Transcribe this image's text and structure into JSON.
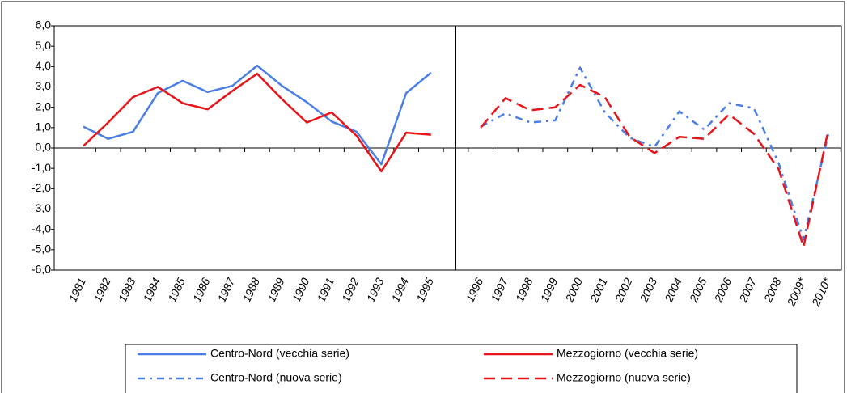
{
  "chart_data": {
    "type": "line",
    "categories": [
      "1981",
      "1982",
      "1983",
      "1984",
      "1985",
      "1986",
      "1987",
      "1988",
      "1989",
      "1990",
      "1991",
      "1992",
      "1993",
      "1994",
      "1995",
      null,
      "1996",
      "1997",
      "1998",
      "1999",
      "2000",
      "2001",
      "2002",
      "2003",
      "2004",
      "2005",
      "2006",
      "2007",
      "2008",
      "2009*",
      "2010*"
    ],
    "series": [
      {
        "name": "Centro-Nord (vecchia serie)",
        "color": "#4a7ee6",
        "dash": "solid",
        "values": [
          1.05,
          0.45,
          0.8,
          2.7,
          3.3,
          2.75,
          3.05,
          4.05,
          3.05,
          2.25,
          1.3,
          0.8,
          -0.8,
          2.7,
          3.7,
          null,
          null,
          null,
          null,
          null,
          null,
          null,
          null,
          null,
          null,
          null,
          null,
          null,
          null,
          null,
          null
        ]
      },
      {
        "name": "Mezzogiorno (vecchia serie)",
        "color": "#e8141a",
        "dash": "solid",
        "values": [
          0.1,
          1.25,
          2.5,
          3.0,
          2.2,
          1.9,
          2.8,
          3.65,
          2.4,
          1.25,
          1.75,
          0.6,
          -1.15,
          0.75,
          0.65,
          null,
          null,
          null,
          null,
          null,
          null,
          null,
          null,
          null,
          null,
          null,
          null,
          null,
          null,
          null,
          null
        ]
      },
      {
        "name": "Centro-Nord (nuova serie)",
        "color": "#4a7ee6",
        "dash": "dashdot",
        "values": [
          null,
          null,
          null,
          null,
          null,
          null,
          null,
          null,
          null,
          null,
          null,
          null,
          null,
          null,
          null,
          null,
          1.05,
          1.7,
          1.25,
          1.35,
          3.95,
          1.75,
          0.5,
          0.05,
          1.8,
          0.9,
          2.2,
          1.95,
          -0.75,
          -4.5,
          0.7
        ]
      },
      {
        "name": "Mezzogiorno (nuova serie)",
        "color": "#e8141a",
        "dash": "dash",
        "values": [
          null,
          null,
          null,
          null,
          null,
          null,
          null,
          null,
          null,
          null,
          null,
          null,
          null,
          null,
          null,
          null,
          1.0,
          2.45,
          1.85,
          2.0,
          3.1,
          2.5,
          0.55,
          -0.25,
          0.55,
          0.45,
          1.65,
          0.7,
          -1.05,
          -4.85,
          0.9
        ]
      }
    ],
    "ylim": [
      -6,
      6
    ],
    "yticks": [
      {
        "value": -6,
        "label": "-6,0"
      },
      {
        "value": -5,
        "label": "-5,0"
      },
      {
        "value": -4,
        "label": "-4,0"
      },
      {
        "value": -3,
        "label": "-3,0"
      },
      {
        "value": -2,
        "label": "-2,0"
      },
      {
        "value": -1,
        "label": "-1,0"
      },
      {
        "value": 0,
        "label": "0,0"
      },
      {
        "value": 1,
        "label": "1,0"
      },
      {
        "value": 2,
        "label": "2,0"
      },
      {
        "value": 3,
        "label": "3,0"
      },
      {
        "value": 4,
        "label": "4,0"
      },
      {
        "value": 5,
        "label": "5,0"
      },
      {
        "value": 6,
        "label": "6,0"
      }
    ],
    "grid": false
  }
}
